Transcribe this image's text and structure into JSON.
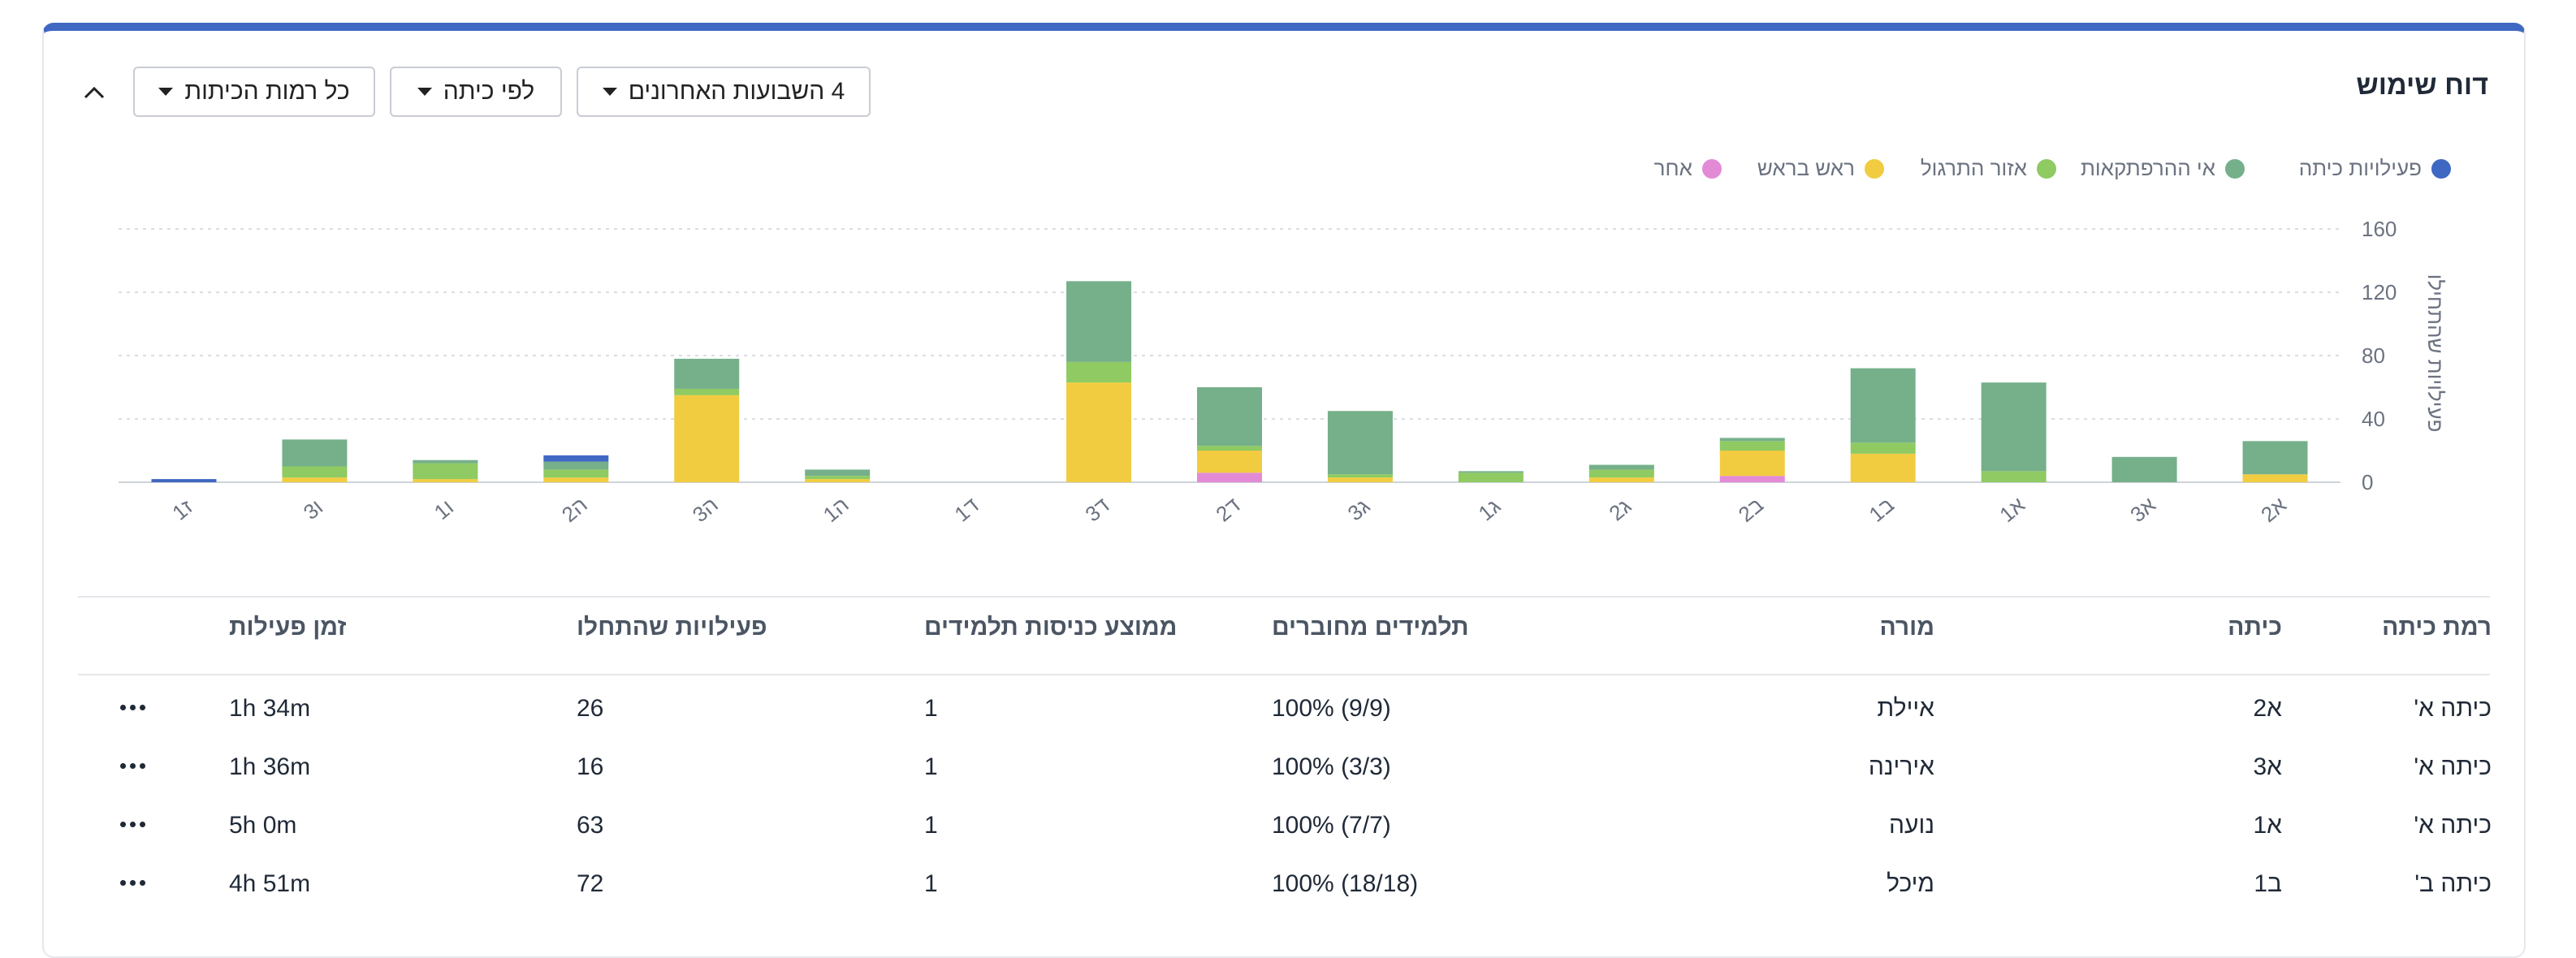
{
  "header": {
    "title": "דוח שימוש",
    "filters": [
      {
        "label": "כל רמות הכיתות",
        "icon": "chevron-down-icon"
      },
      {
        "label": "לפי כיתה",
        "icon": "chevron-down-icon"
      },
      {
        "label": "4 השבועות האחרונים",
        "icon": "chevron-down-icon"
      }
    ],
    "collapse_icon": "chevron-up-icon"
  },
  "colors": {
    "accent": "#3f68c2",
    "classroom": "#3f68c2",
    "no_adventures": "#75b08a",
    "practice": "#8fca62",
    "head_to_head": "#f1cc40",
    "other": "#e38ad6"
  },
  "chart_data": {
    "type": "bar",
    "stacked": true,
    "ylabel": "פעילויות שהתחילו",
    "ylim": [
      0,
      160
    ],
    "yticks": [
      0,
      40,
      80,
      120,
      160
    ],
    "grid": true,
    "legend_position": "top-right",
    "categories": [
      "א2",
      "א3",
      "א1",
      "ב1",
      "ב2",
      "ג2",
      "ג1",
      "ג3",
      "ד2",
      "ד3",
      "ד1",
      "ה1",
      "ה3",
      "ה2",
      "ו1",
      "ו3",
      "ז1"
    ],
    "series": [
      {
        "name": "אחר",
        "color": "#e38ad6",
        "values": [
          0,
          0,
          0,
          0,
          4,
          0,
          0,
          0,
          6,
          0,
          0,
          0,
          0,
          0,
          0,
          0,
          0
        ]
      },
      {
        "name": "ראש בראש",
        "color": "#f1cc40",
        "values": [
          5,
          0,
          0,
          18,
          16,
          3,
          0,
          3,
          14,
          63,
          0,
          2,
          55,
          3,
          2,
          3,
          0
        ]
      },
      {
        "name": "אזור התרגול",
        "color": "#8fca62",
        "values": [
          0,
          0,
          7,
          7,
          6,
          5,
          6,
          2,
          3,
          13,
          0,
          2,
          4,
          5,
          10,
          7,
          0
        ]
      },
      {
        "name": "אי ההרפתקאות",
        "color": "#75b08a",
        "values": [
          21,
          16,
          56,
          47,
          2,
          3,
          1,
          40,
          37,
          51,
          0,
          4,
          19,
          5,
          2,
          17,
          0
        ]
      },
      {
        "name": "פעילויות כיתה",
        "color": "#3f68c2",
        "values": [
          0,
          0,
          0,
          0,
          0,
          0,
          0,
          0,
          0,
          0,
          0,
          0,
          0,
          4,
          0,
          0,
          2
        ]
      }
    ]
  },
  "legend": [
    {
      "label": "פעילויות כיתה",
      "color": "#3f68c2"
    },
    {
      "label": "אי ההרפתקאות",
      "color": "#75b08a"
    },
    {
      "label": "אזור התרגול",
      "color": "#8fca62"
    },
    {
      "label": "ראש בראש",
      "color": "#f1cc40"
    },
    {
      "label": "אחר",
      "color": "#e38ad6"
    }
  ],
  "table": {
    "columns": [
      "רמת כיתה",
      "כיתה",
      "מורה",
      "תלמידים מחוברים",
      "ממוצע כניסות תלמידים",
      "פעילויות שהתחלו",
      "זמן פעילות"
    ],
    "rows": [
      {
        "grade": "כיתה א'",
        "class": "א2",
        "teacher": "איילת",
        "connected": "100% (9/9)",
        "avg_logins": "1",
        "activities": "26",
        "time": "1h 34m"
      },
      {
        "grade": "כיתה א'",
        "class": "א3",
        "teacher": "אירינה",
        "connected": "100% (3/3)",
        "avg_logins": "1",
        "activities": "16",
        "time": "1h 36m"
      },
      {
        "grade": "כיתה א'",
        "class": "א1",
        "teacher": "נועה",
        "connected": "100% (7/7)",
        "avg_logins": "1",
        "activities": "63",
        "time": "5h 0m"
      },
      {
        "grade": "כיתה ב'",
        "class": "ב1",
        "teacher": "מיכל",
        "connected": "100% (18/18)",
        "avg_logins": "1",
        "activities": "72",
        "time": "4h 51m"
      }
    ],
    "row_menu_icon": "more-horizontal-icon"
  }
}
